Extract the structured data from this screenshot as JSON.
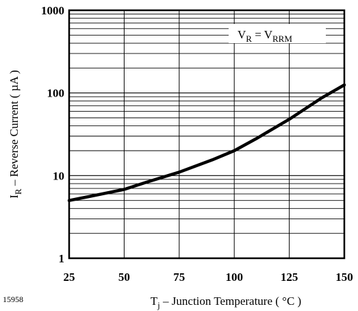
{
  "figure_number": "15958",
  "chart_data": {
    "type": "line",
    "title": "",
    "xlabel": {
      "main": "T",
      "sub": "j",
      "rest": " – Junction Temperature ( °C )"
    },
    "ylabel": {
      "main": "I",
      "sub": "R",
      "rest": " – Reverse Current ( µA )"
    },
    "xlim": [
      25,
      150
    ],
    "ylim": [
      1,
      1000
    ],
    "y_scale": "log",
    "grid": true,
    "x_ticks": [
      "25",
      "50",
      "75",
      "100",
      "125",
      "150"
    ],
    "y_ticks": [
      "1",
      "10",
      "100",
      "1000"
    ],
    "annotation": {
      "parts": [
        {
          "text": "V",
          "sub": false
        },
        {
          "text": "R",
          "sub": true
        },
        {
          "text": " = V",
          "sub": false
        },
        {
          "text": "RRM",
          "sub": true
        }
      ]
    },
    "series": [
      {
        "x": [
          25,
          40,
          50,
          60,
          75,
          90,
          100,
          110,
          125,
          140,
          150
        ],
        "y": [
          5.0,
          6.0,
          6.8,
          8.3,
          11.0,
          15.5,
          20.0,
          28.0,
          48.0,
          88.0,
          125.0
        ]
      }
    ]
  }
}
